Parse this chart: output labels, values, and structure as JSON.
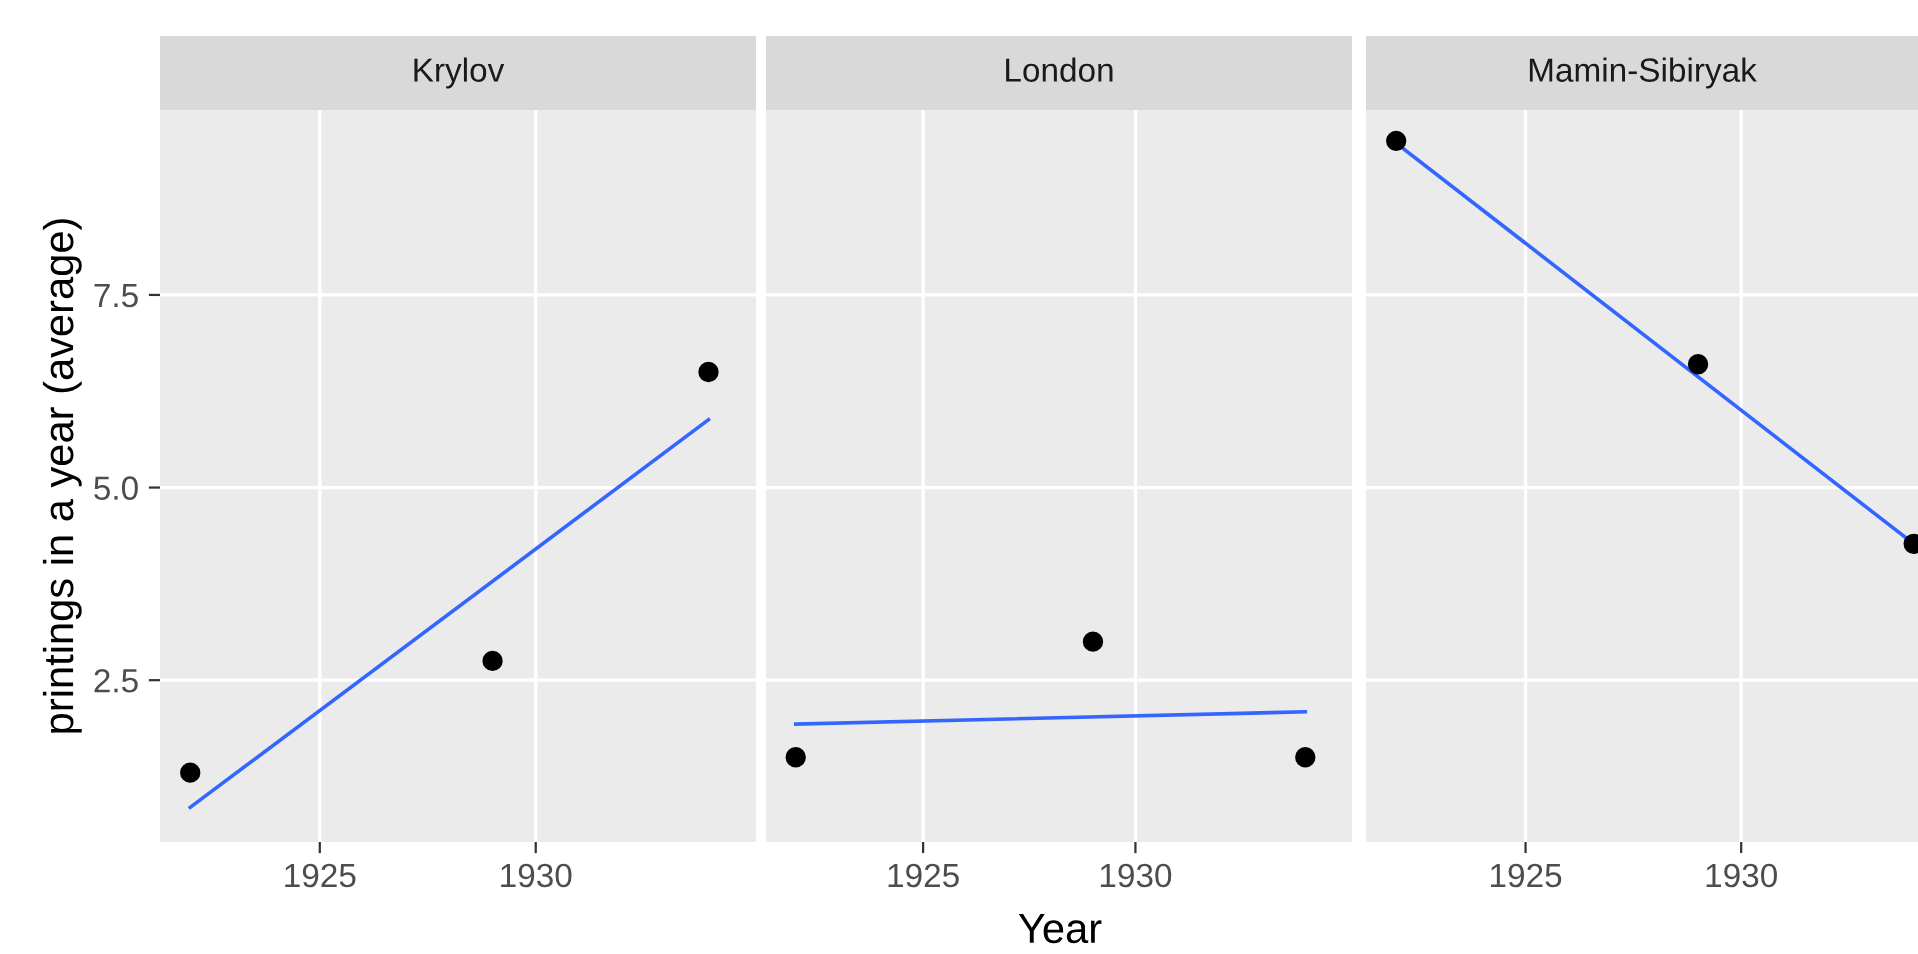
{
  "chart_data": [
    {
      "type": "scatter",
      "title": "Krylov",
      "ylabel": "printings in a year (average)",
      "xlim": [
        1921.3,
        1935.1
      ],
      "ylim": [
        0.4,
        9.9
      ],
      "xticks": [
        1925,
        1930
      ],
      "yticks": [
        {
          "value": 2.5,
          "label": "2.5"
        },
        {
          "value": 5.0,
          "label": "5.0"
        },
        {
          "value": 7.5,
          "label": "7.5"
        }
      ],
      "grid": true,
      "series": [
        {
          "color": "#000000",
          "marker": "circle",
          "x": [
            1922,
            1929,
            1934
          ],
          "values": [
            1.3,
            2.75,
            6.5
          ]
        },
        {
          "type": "line",
          "marker": "none",
          "color": "#3366ff",
          "x": [
            1922,
            1934
          ],
          "values": [
            0.85,
            5.88
          ]
        }
      ]
    },
    {
      "type": "scatter",
      "title": "London",
      "xlabel": "Year",
      "xlim": [
        1921.3,
        1935.1
      ],
      "ylim": [
        0.4,
        9.9
      ],
      "xticks": [
        1925,
        1930
      ],
      "yticks": [
        2.5,
        5,
        7.5
      ],
      "grid": true,
      "tick_labels": "x",
      "series": [
        {
          "color": "#000000",
          "marker": "circle",
          "x": [
            1922,
            1929,
            1934
          ],
          "values": [
            1.5,
            3.0,
            1.5
          ]
        },
        {
          "type": "line",
          "marker": "none",
          "color": "#3366ff",
          "x": [
            1922,
            1934
          ],
          "values": [
            1.93,
            2.09
          ]
        }
      ]
    },
    {
      "type": "scatter",
      "title": "Mamin-Sibiryak",
      "xlim": [
        1921.3,
        1934.1
      ],
      "ylim": [
        0.4,
        9.9
      ],
      "xticks": [
        1925,
        1930
      ],
      "yticks": [
        2.5,
        5,
        7.5
      ],
      "grid": true,
      "tick_labels": "x",
      "series": [
        {
          "color": "#000000",
          "marker": "circle",
          "x": [
            1922,
            1929,
            1934
          ],
          "values": [
            9.5,
            6.6,
            4.27
          ]
        },
        {
          "type": "line",
          "marker": "none",
          "color": "#3366ff",
          "x": [
            1922,
            1934
          ],
          "values": [
            9.47,
            4.27
          ]
        }
      ]
    }
  ]
}
